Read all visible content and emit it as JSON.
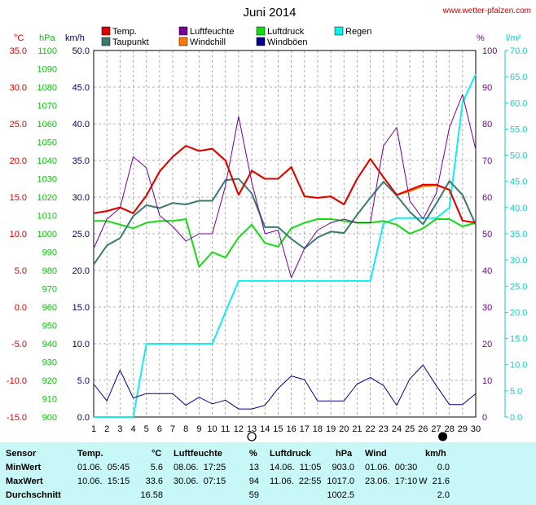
{
  "page": {
    "title": "Juni 2014",
    "source": "www.wetter-pfalzen.com"
  },
  "axis_units": {
    "temp": "°C",
    "pressure": "hPa",
    "wind": "km/h",
    "humidity": "%",
    "rain": "l/m²"
  },
  "colors": {
    "temp": "#dd0000",
    "dewpoint": "#3a7a70",
    "humidity": "#770099",
    "windchill": "#ff7700",
    "pressure": "#11dd11",
    "gust": "#000088",
    "rain": "#11eeee",
    "axis_temp": "#dd0000",
    "axis_pressure": "#11bb11",
    "axis_wind": "#000066",
    "axis_humidity": "#770099",
    "axis_rain": "#11cccc",
    "grid": "#999999"
  },
  "chart_data": {
    "type": "line",
    "title": "Juni 2014",
    "x": [
      1,
      2,
      3,
      4,
      5,
      6,
      7,
      8,
      9,
      10,
      11,
      12,
      13,
      14,
      15,
      16,
      17,
      18,
      19,
      20,
      21,
      22,
      23,
      24,
      25,
      26,
      27,
      28,
      29,
      30
    ],
    "axes": {
      "temp_c": {
        "ylim": [
          -15.0,
          35.0
        ],
        "ticks": [
          "35.0",
          "30.0",
          "25.0",
          "20.0",
          "15.0",
          "10.0",
          "5.0",
          "0.0",
          "-5.0",
          "-10.0",
          "-15.0"
        ]
      },
      "pressure_hpa": {
        "ylim": [
          900,
          1100
        ],
        "ticks": [
          "1100",
          "1090",
          "1080",
          "1070",
          "1060",
          "1050",
          "1040",
          "1030",
          "1020",
          "1010",
          "1000",
          "990",
          "980",
          "970",
          "960",
          "950",
          "940",
          "930",
          "920",
          "910",
          "900"
        ]
      },
      "wind_kmh": {
        "ylim": [
          0.0,
          50.0
        ],
        "ticks": [
          "50.0",
          "45.0",
          "40.0",
          "35.0",
          "30.0",
          "25.0",
          "20.0",
          "15.0",
          "10.0",
          "5.0",
          "0.0"
        ]
      },
      "humidity_pct": {
        "ylim": [
          0,
          100
        ],
        "ticks": [
          "100",
          "90",
          "80",
          "70",
          "60",
          "50",
          "40",
          "30",
          "20",
          "10",
          "0"
        ]
      },
      "rain_lm2": {
        "ylim": [
          0.0,
          70.0
        ],
        "ticks": [
          "70.0",
          "65.0",
          "60.0",
          "55.0",
          "50.0",
          "45.0",
          "40.0",
          "35.0",
          "30.0",
          "25.0",
          "20.0",
          "15.0",
          "10.0",
          "5.0",
          "0.0"
        ]
      }
    },
    "grid": true,
    "moon_phases": [
      {
        "day": 13,
        "phase": "full"
      },
      {
        "day": 27.5,
        "phase": "new"
      }
    ],
    "series": [
      {
        "name": "Temp.",
        "key": "temp",
        "axis": "temp_c",
        "width": 2,
        "values": [
          12.8,
          13.1,
          13.6,
          12.8,
          15.2,
          18.5,
          20.5,
          22.0,
          21.3,
          21.6,
          20.0,
          15.3,
          18.6,
          17.5,
          17.5,
          19.1,
          15.1,
          14.9,
          15.1,
          14.0,
          17.5,
          20.2,
          17.7,
          15.3,
          16.0,
          16.7,
          16.7,
          16.0,
          11.8,
          11.5
        ]
      },
      {
        "name": "Taupunkt",
        "key": "dewpoint",
        "axis": "temp_c",
        "width": 2,
        "values": [
          5.8,
          8.4,
          9.4,
          12.4,
          13.9,
          13.5,
          14.2,
          14.0,
          14.5,
          14.5,
          17.3,
          17.5,
          15.5,
          10.9,
          10.9,
          9.3,
          8.0,
          9.5,
          10.3,
          10.1,
          12.6,
          14.9,
          17.1,
          15.2,
          13.0,
          11.3,
          14.1,
          17.2,
          15.3,
          11.2
        ]
      },
      {
        "name": "Luftfeuchte",
        "key": "humidity",
        "axis": "humidity_pct",
        "width": 1,
        "values": [
          46,
          54,
          57,
          71,
          68,
          55,
          52,
          48,
          50,
          50,
          63,
          82,
          64,
          50,
          51,
          38,
          46,
          51,
          53,
          54,
          53,
          53,
          74,
          79,
          59,
          54,
          61,
          79,
          88,
          73
        ]
      },
      {
        "name": "Windchill",
        "key": "windchill",
        "axis": "temp_c",
        "width": 2,
        "values": [
          12.8,
          13.1,
          13.6,
          12.8,
          15.2,
          18.5,
          20.5,
          22.0,
          21.3,
          21.6,
          20.0,
          15.3,
          18.6,
          17.5,
          17.5,
          19.1,
          15.1,
          14.9,
          15.1,
          14.0,
          17.5,
          20.2,
          17.7,
          15.3,
          15.8,
          16.5,
          16.6,
          16.0,
          11.8,
          11.5
        ]
      },
      {
        "name": "Luftdruck",
        "key": "pressure",
        "axis": "pressure_hpa",
        "width": 2,
        "values": [
          1007,
          1007,
          1005,
          1003,
          1006,
          1007,
          1007,
          1008,
          982,
          990,
          987,
          998,
          1005,
          995,
          993,
          1003,
          1006,
          1008,
          1008,
          1007,
          1006,
          1006,
          1007,
          1005,
          1000,
          1003,
          1008,
          1008,
          1004,
          1006
        ]
      },
      {
        "name": "Regen",
        "key": "rain",
        "axis": "rain_lm2",
        "width": 2,
        "values": [
          0.0,
          0.0,
          0.0,
          0.0,
          14.0,
          14.0,
          14.0,
          14.0,
          14.0,
          14.0,
          20.0,
          26.0,
          26.0,
          26.0,
          26.0,
          26.0,
          26.0,
          26.0,
          26.0,
          26.0,
          26.0,
          26.0,
          37.0,
          38.0,
          38.0,
          38.0,
          38.0,
          40.0,
          60.0,
          65.5
        ]
      },
      {
        "name": "Windböen",
        "key": "gust",
        "axis": "wind_kmh",
        "width": 1,
        "values": [
          4.5,
          2.2,
          6.4,
          2.6,
          3.2,
          3.2,
          3.2,
          1.6,
          2.7,
          1.8,
          2.3,
          1.1,
          1.1,
          1.6,
          3.9,
          5.6,
          5.1,
          2.2,
          2.2,
          2.2,
          4.5,
          5.4,
          4.3,
          1.6,
          5.2,
          7.1,
          4.3,
          1.7,
          1.7,
          3.2
        ]
      }
    ]
  },
  "stats": {
    "headers": {
      "sensor": "Sensor",
      "temp": "Temp.",
      "temp_unit": "°C",
      "hum": "Luftfeuchte",
      "hum_unit": "%",
      "press": "Luftdruck",
      "press_unit": "hPa",
      "wind": "Wind",
      "wind_unit": "km/h"
    },
    "rows": [
      {
        "label": "MinWert",
        "temp_when": "01.06.  05:45",
        "temp_val": "5.6",
        "hum_when": "08.06.  17:25",
        "hum_val": "13",
        "press_when": "14.06.  11:05",
        "press_val": "903.0",
        "wind_when": "01.06.  00:30",
        "wind_val": "0.0"
      },
      {
        "label": "MaxWert",
        "temp_when": "10.06.  15:15",
        "temp_val": "33.6",
        "hum_when": "30.06.  07:15",
        "hum_val": "94",
        "press_when": "11.06.  22:55",
        "press_val": "1017.0",
        "wind_when": "23.06.  17:10",
        "wind_val": "W  21.6"
      },
      {
        "label": "Durchschnitt",
        "temp_when": "",
        "temp_val": "16.58",
        "hum_when": "",
        "hum_val": "59",
        "press_when": "",
        "press_val": "1002.5",
        "wind_when": "",
        "wind_val": "2.0"
      }
    ]
  }
}
